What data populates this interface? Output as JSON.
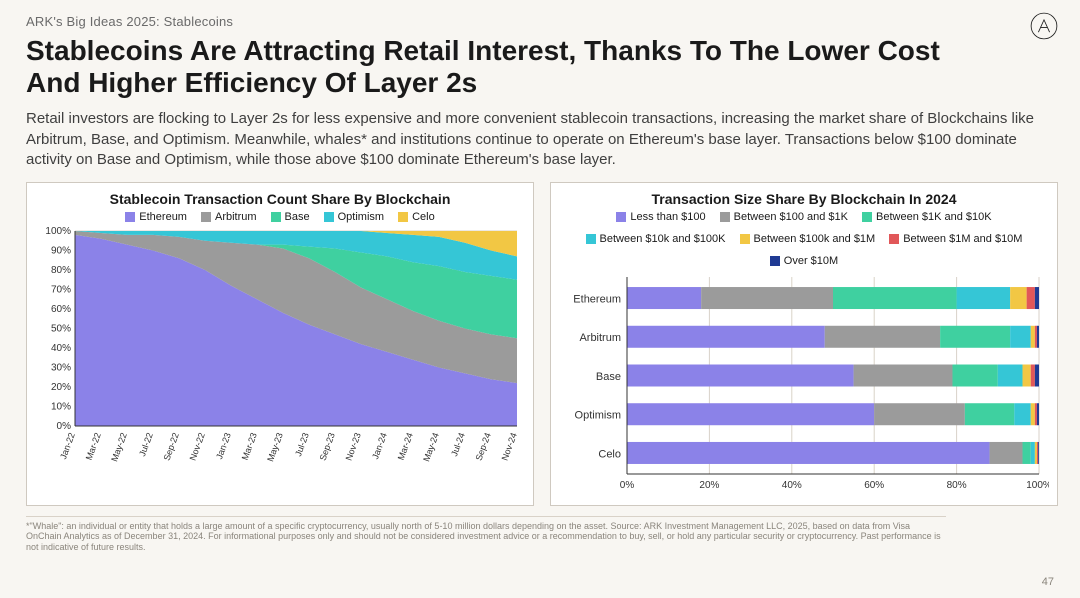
{
  "eyebrow": "ARK's Big Ideas 2025: Stablecoins",
  "title": "Stablecoins Are Attracting Retail Interest, Thanks To The Lower Cost And Higher Efficiency Of Layer 2s",
  "body": "Retail investors are flocking to Layer 2s for less expensive and more convenient stablecoin transactions, increasing the market share of Blockchains like Arbitrum, Base, and Optimism. Meanwhile, whales* and institutions continue to operate on Ethereum's base layer. Transactions below $100 dominate activity on Base and Optimism, while those above $100 dominate Ethereum's base layer.",
  "colors": {
    "ethereum": "#8b82e8",
    "arbitrum": "#9b9b9b",
    "base": "#3fd0a0",
    "optimism": "#35c6d6",
    "celo": "#f2c744",
    "bucket_lt100": "#8b82e8",
    "bucket_100_1k": "#9b9b9b",
    "bucket_1k_10k": "#3fd0a0",
    "bucket_10k_100k": "#35c6d6",
    "bucket_100k_1m": "#f2c744",
    "bucket_1m_10m": "#e15759",
    "bucket_over10m": "#1f3a93",
    "panel_border": "#cfc9c0",
    "grid": "#d9d2c8",
    "background": "#f8f6f2"
  },
  "left_chart": {
    "title": "Stablecoin Transaction Count Share By Blockchain",
    "type": "stacked-area",
    "legend": [
      "Ethereum",
      "Arbitrum",
      "Base",
      "Optimism",
      "Celo"
    ],
    "legend_colors": [
      "#8b82e8",
      "#9b9b9b",
      "#3fd0a0",
      "#35c6d6",
      "#f2c744"
    ],
    "y_ticks": [
      0,
      10,
      20,
      30,
      40,
      50,
      60,
      70,
      80,
      90,
      100
    ],
    "y_tick_labels": [
      "0%",
      "10%",
      "20%",
      "30%",
      "40%",
      "50%",
      "60%",
      "70%",
      "80%",
      "90%",
      "100%"
    ],
    "x_labels": [
      "Jan-22",
      "Mar-22",
      "May-22",
      "Jul-22",
      "Sep-22",
      "Nov-22",
      "Jan-23",
      "Mar-23",
      "May-23",
      "Jul-23",
      "Sep-23",
      "Nov-23",
      "Jan-24",
      "Mar-24",
      "May-24",
      "Jul-24",
      "Sep-24",
      "Nov-24"
    ],
    "series": {
      "ethereum": [
        98,
        96,
        93,
        90,
        86,
        80,
        72,
        65,
        58,
        52,
        47,
        42,
        38,
        34,
        30,
        27,
        24,
        22
      ],
      "arbitrum": [
        2,
        3,
        5,
        8,
        11,
        15,
        22,
        28,
        33,
        34,
        32,
        29,
        27,
        25,
        24,
        23,
        23,
        23
      ],
      "base": [
        0,
        0,
        0,
        0,
        0,
        0,
        0,
        0,
        2,
        6,
        12,
        18,
        22,
        25,
        28,
        29,
        30,
        30
      ],
      "optimism": [
        0,
        1,
        2,
        2,
        3,
        5,
        6,
        7,
        7,
        8,
        9,
        11,
        12,
        14,
        15,
        15,
        13,
        12
      ],
      "celo": [
        0,
        0,
        0,
        0,
        0,
        0,
        0,
        0,
        0,
        0,
        0,
        0,
        1,
        2,
        3,
        6,
        10,
        13
      ]
    }
  },
  "right_chart": {
    "title": "Transaction Size Share By Blockchain In 2024",
    "type": "stacked-bar-horizontal",
    "legend": [
      "Less than $100",
      "Between $100 and $1K",
      "Between $1K and $10K",
      "Between $10k and $100K",
      "Between $100k and $1M",
      "Between $1M and $10M",
      "Over $10M"
    ],
    "legend_colors": [
      "#8b82e8",
      "#9b9b9b",
      "#3fd0a0",
      "#35c6d6",
      "#f2c744",
      "#e15759",
      "#1f3a93"
    ],
    "categories": [
      "Ethereum",
      "Arbitrum",
      "Base",
      "Optimism",
      "Celo"
    ],
    "x_ticks": [
      0,
      20,
      40,
      60,
      80,
      100
    ],
    "x_tick_labels": [
      "0%",
      "20%",
      "40%",
      "60%",
      "80%",
      "100%"
    ],
    "data": {
      "Ethereum": [
        18,
        32,
        30,
        13,
        4,
        2,
        1
      ],
      "Arbitrum": [
        48,
        28,
        17,
        5,
        1,
        0.5,
        0.5
      ],
      "Base": [
        55,
        24,
        11,
        6,
        2,
        1,
        1
      ],
      "Optimism": [
        60,
        22,
        12,
        4,
        1,
        0.5,
        0.5
      ],
      "Celo": [
        88,
        8,
        2,
        1,
        0.5,
        0.3,
        0.2
      ]
    }
  },
  "footnote": "*\"Whale\": an individual or entity that holds a large amount of a specific cryptocurrency, usually north of 5-10 million dollars depending on the asset. Source: ARK Investment Management LLC, 2025, based on data from Visa OnChain Analytics as of December 31, 2024. For informational purposes only and should not be considered investment advice or a recommendation to buy, sell, or hold any particular security or cryptocurrency. Past performance is not indicative of future results.",
  "page_number": "47"
}
